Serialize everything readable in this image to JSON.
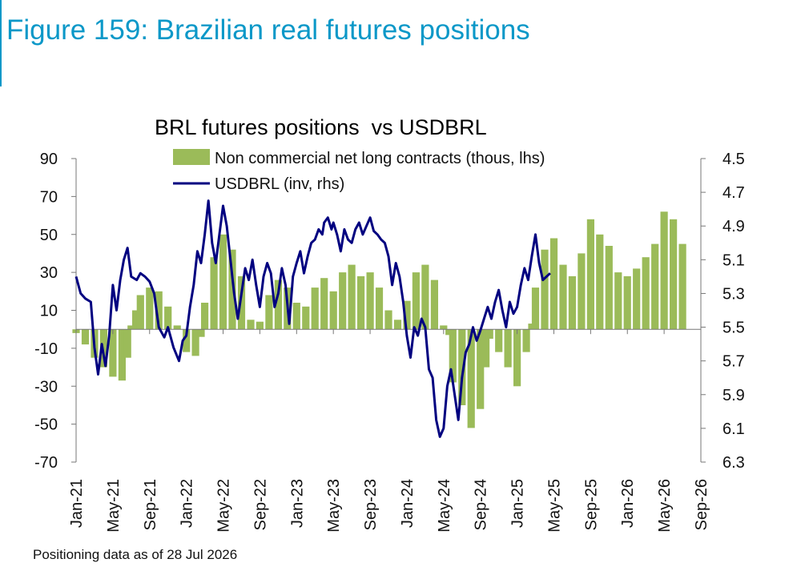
{
  "figure_title": "Figure 159: Brazilian real futures positions",
  "footnote": "Positioning data as of 28 Jul 2026",
  "colors": {
    "title": "#0b98c8",
    "bars": "#9bbb59",
    "line": "#000080"
  },
  "chart_data": {
    "type": "bar+line",
    "title": "BRL futures positions  vs USDBRL",
    "legend": {
      "placement": "top",
      "entries": [
        "Non commercial net long contracts (thous, lhs)",
        "USDBRL (inv, rhs)"
      ]
    },
    "x_ticks": [
      "Jan-21",
      "May-21",
      "Sep-21",
      "Jan-22",
      "May-22",
      "Sep-22",
      "Jan-23",
      "May-23",
      "Sep-23",
      "Jan-24",
      "May-24",
      "Sep-24",
      "Jan-25",
      "May-25",
      "Sep-25",
      "Jan-26",
      "May-26",
      "Sep-26"
    ],
    "x_range": [
      "Jan-21",
      "Sep-26"
    ],
    "y_left": {
      "min": -70,
      "max": 90,
      "ticks": [
        "90",
        "70",
        "50",
        "30",
        "10",
        "-10",
        "-30",
        "-50",
        "-70"
      ]
    },
    "y_right": {
      "min": 4.5,
      "max": 6.3,
      "inverted": true,
      "ticks": [
        "4.5",
        "4.7",
        "4.9",
        "5.1",
        "5.3",
        "5.5",
        "5.7",
        "5.9",
        "6.1",
        "6.3"
      ]
    },
    "series": [
      {
        "name": "Non commercial net long contracts (thous, lhs)",
        "type": "bar",
        "axis": "left",
        "points": [
          [
            0.0,
            -2
          ],
          [
            1.0,
            -8
          ],
          [
            2.0,
            -15
          ],
          [
            3.0,
            -20
          ],
          [
            4.0,
            -25
          ],
          [
            5.0,
            -27
          ],
          [
            5.6,
            -15
          ],
          [
            6.0,
            2
          ],
          [
            6.5,
            10
          ],
          [
            7.0,
            18
          ],
          [
            8.0,
            22
          ],
          [
            9.0,
            20
          ],
          [
            10.0,
            12
          ],
          [
            11.0,
            2
          ],
          [
            12.0,
            -12
          ],
          [
            13.0,
            -14
          ],
          [
            13.6,
            -4
          ],
          [
            14.0,
            14
          ],
          [
            15.0,
            38
          ],
          [
            16.0,
            50
          ],
          [
            17.0,
            42
          ],
          [
            18.0,
            28
          ],
          [
            19.0,
            5
          ],
          [
            20.0,
            4
          ],
          [
            21.0,
            18
          ],
          [
            22.0,
            26
          ],
          [
            23.0,
            22
          ],
          [
            24.0,
            14
          ],
          [
            25.0,
            12
          ],
          [
            26.0,
            22
          ],
          [
            27.0,
            27
          ],
          [
            28.0,
            20
          ],
          [
            29.0,
            30
          ],
          [
            30.0,
            34
          ],
          [
            31.0,
            28
          ],
          [
            32.0,
            30
          ],
          [
            33.0,
            22
          ],
          [
            34.0,
            10
          ],
          [
            35.0,
            5
          ],
          [
            36.0,
            15
          ],
          [
            37.0,
            30
          ],
          [
            38.0,
            34
          ],
          [
            39.0,
            26
          ],
          [
            40.0,
            2
          ],
          [
            40.6,
            -3
          ],
          [
            41.0,
            -28
          ],
          [
            42.0,
            -40
          ],
          [
            43.0,
            -52
          ],
          [
            44.0,
            -42
          ],
          [
            44.6,
            -20
          ],
          [
            45.0,
            -5
          ],
          [
            46.0,
            -12
          ],
          [
            47.0,
            -20
          ],
          [
            48.0,
            -30
          ],
          [
            49.0,
            -12
          ],
          [
            49.6,
            3
          ],
          [
            50.0,
            22
          ],
          [
            51.0,
            42
          ],
          [
            52.0,
            48
          ],
          [
            53.0,
            34
          ],
          [
            54.0,
            28
          ],
          [
            55.0,
            40
          ],
          [
            56.0,
            58
          ],
          [
            57.0,
            50
          ],
          [
            58.0,
            44
          ],
          [
            59.0,
            30
          ],
          [
            60.0,
            28
          ],
          [
            61.0,
            32
          ],
          [
            62.0,
            38
          ],
          [
            63.0,
            45
          ],
          [
            64.0,
            62
          ],
          [
            65.0,
            58
          ],
          [
            66.0,
            45
          ]
        ]
      },
      {
        "name": "USDBRL (inv, rhs)",
        "type": "line",
        "axis": "right",
        "points": [
          [
            0.0,
            5.2
          ],
          [
            0.5,
            5.3
          ],
          [
            1.0,
            5.33
          ],
          [
            1.6,
            5.35
          ],
          [
            2.0,
            5.62
          ],
          [
            2.4,
            5.78
          ],
          [
            2.8,
            5.6
          ],
          [
            3.2,
            5.73
          ],
          [
            3.6,
            5.55
          ],
          [
            4.0,
            5.25
          ],
          [
            4.4,
            5.4
          ],
          [
            4.8,
            5.22
          ],
          [
            5.2,
            5.1
          ],
          [
            5.6,
            5.03
          ],
          [
            6.0,
            5.2
          ],
          [
            6.6,
            5.22
          ],
          [
            7.0,
            5.18
          ],
          [
            7.5,
            5.2
          ],
          [
            8.0,
            5.23
          ],
          [
            8.5,
            5.3
          ],
          [
            9.0,
            5.5
          ],
          [
            9.6,
            5.56
          ],
          [
            10.0,
            5.5
          ],
          [
            10.6,
            5.62
          ],
          [
            11.2,
            5.7
          ],
          [
            11.6,
            5.58
          ],
          [
            12.0,
            5.55
          ],
          [
            12.4,
            5.38
          ],
          [
            12.8,
            5.25
          ],
          [
            13.2,
            5.05
          ],
          [
            13.6,
            5.12
          ],
          [
            14.0,
            4.95
          ],
          [
            14.4,
            4.75
          ],
          [
            14.8,
            5.0
          ],
          [
            15.2,
            5.12
          ],
          [
            15.6,
            4.95
          ],
          [
            16.0,
            4.78
          ],
          [
            16.4,
            4.9
          ],
          [
            16.8,
            5.1
          ],
          [
            17.2,
            5.3
          ],
          [
            17.6,
            5.45
          ],
          [
            18.0,
            5.3
          ],
          [
            18.4,
            5.15
          ],
          [
            18.8,
            5.22
          ],
          [
            19.2,
            5.1
          ],
          [
            19.6,
            5.25
          ],
          [
            20.0,
            5.38
          ],
          [
            20.4,
            5.2
          ],
          [
            20.8,
            5.12
          ],
          [
            21.2,
            5.18
          ],
          [
            21.6,
            5.38
          ],
          [
            22.0,
            5.3
          ],
          [
            22.4,
            5.15
          ],
          [
            22.8,
            5.25
          ],
          [
            23.2,
            5.48
          ],
          [
            23.6,
            5.2
          ],
          [
            24.0,
            5.12
          ],
          [
            24.4,
            5.05
          ],
          [
            24.8,
            5.18
          ],
          [
            25.2,
            5.08
          ],
          [
            25.6,
            5.0
          ],
          [
            26.0,
            4.98
          ],
          [
            26.4,
            4.92
          ],
          [
            26.8,
            4.95
          ],
          [
            27.0,
            4.88
          ],
          [
            27.4,
            4.85
          ],
          [
            27.8,
            4.92
          ],
          [
            28.0,
            4.88
          ],
          [
            28.4,
            4.95
          ],
          [
            28.8,
            5.05
          ],
          [
            29.2,
            4.92
          ],
          [
            29.6,
            4.98
          ],
          [
            30.0,
            5.0
          ],
          [
            30.4,
            4.92
          ],
          [
            30.8,
            4.88
          ],
          [
            31.2,
            4.95
          ],
          [
            31.6,
            4.9
          ],
          [
            32.0,
            4.85
          ],
          [
            32.4,
            4.93
          ],
          [
            32.8,
            4.95
          ],
          [
            33.2,
            4.98
          ],
          [
            33.6,
            5.0
          ],
          [
            34.0,
            5.08
          ],
          [
            34.4,
            5.25
          ],
          [
            34.8,
            5.12
          ],
          [
            35.2,
            5.2
          ],
          [
            35.6,
            5.35
          ],
          [
            36.0,
            5.55
          ],
          [
            36.4,
            5.68
          ],
          [
            36.8,
            5.5
          ],
          [
            37.2,
            5.55
          ],
          [
            37.6,
            5.45
          ],
          [
            38.0,
            5.5
          ],
          [
            38.4,
            5.75
          ],
          [
            38.8,
            5.8
          ],
          [
            39.2,
            6.05
          ],
          [
            39.6,
            6.15
          ],
          [
            40.0,
            6.1
          ],
          [
            40.4,
            5.85
          ],
          [
            40.8,
            5.75
          ],
          [
            41.2,
            5.9
          ],
          [
            41.6,
            6.05
          ],
          [
            42.0,
            5.8
          ],
          [
            42.4,
            5.65
          ],
          [
            42.8,
            5.6
          ],
          [
            43.2,
            5.5
          ],
          [
            43.6,
            5.58
          ],
          [
            44.0,
            5.52
          ],
          [
            44.4,
            5.45
          ],
          [
            44.8,
            5.38
          ],
          [
            45.2,
            5.45
          ],
          [
            45.6,
            5.35
          ],
          [
            46.0,
            5.28
          ],
          [
            46.4,
            5.4
          ],
          [
            46.8,
            5.5
          ],
          [
            47.2,
            5.35
          ],
          [
            47.6,
            5.42
          ],
          [
            48.0,
            5.38
          ],
          [
            48.4,
            5.25
          ],
          [
            48.8,
            5.15
          ],
          [
            49.2,
            5.22
          ],
          [
            49.6,
            5.08
          ],
          [
            50.0,
            4.95
          ],
          [
            50.4,
            5.12
          ],
          [
            50.8,
            5.22
          ],
          [
            51.2,
            5.2
          ],
          [
            51.6,
            5.18
          ]
        ]
      }
    ]
  }
}
